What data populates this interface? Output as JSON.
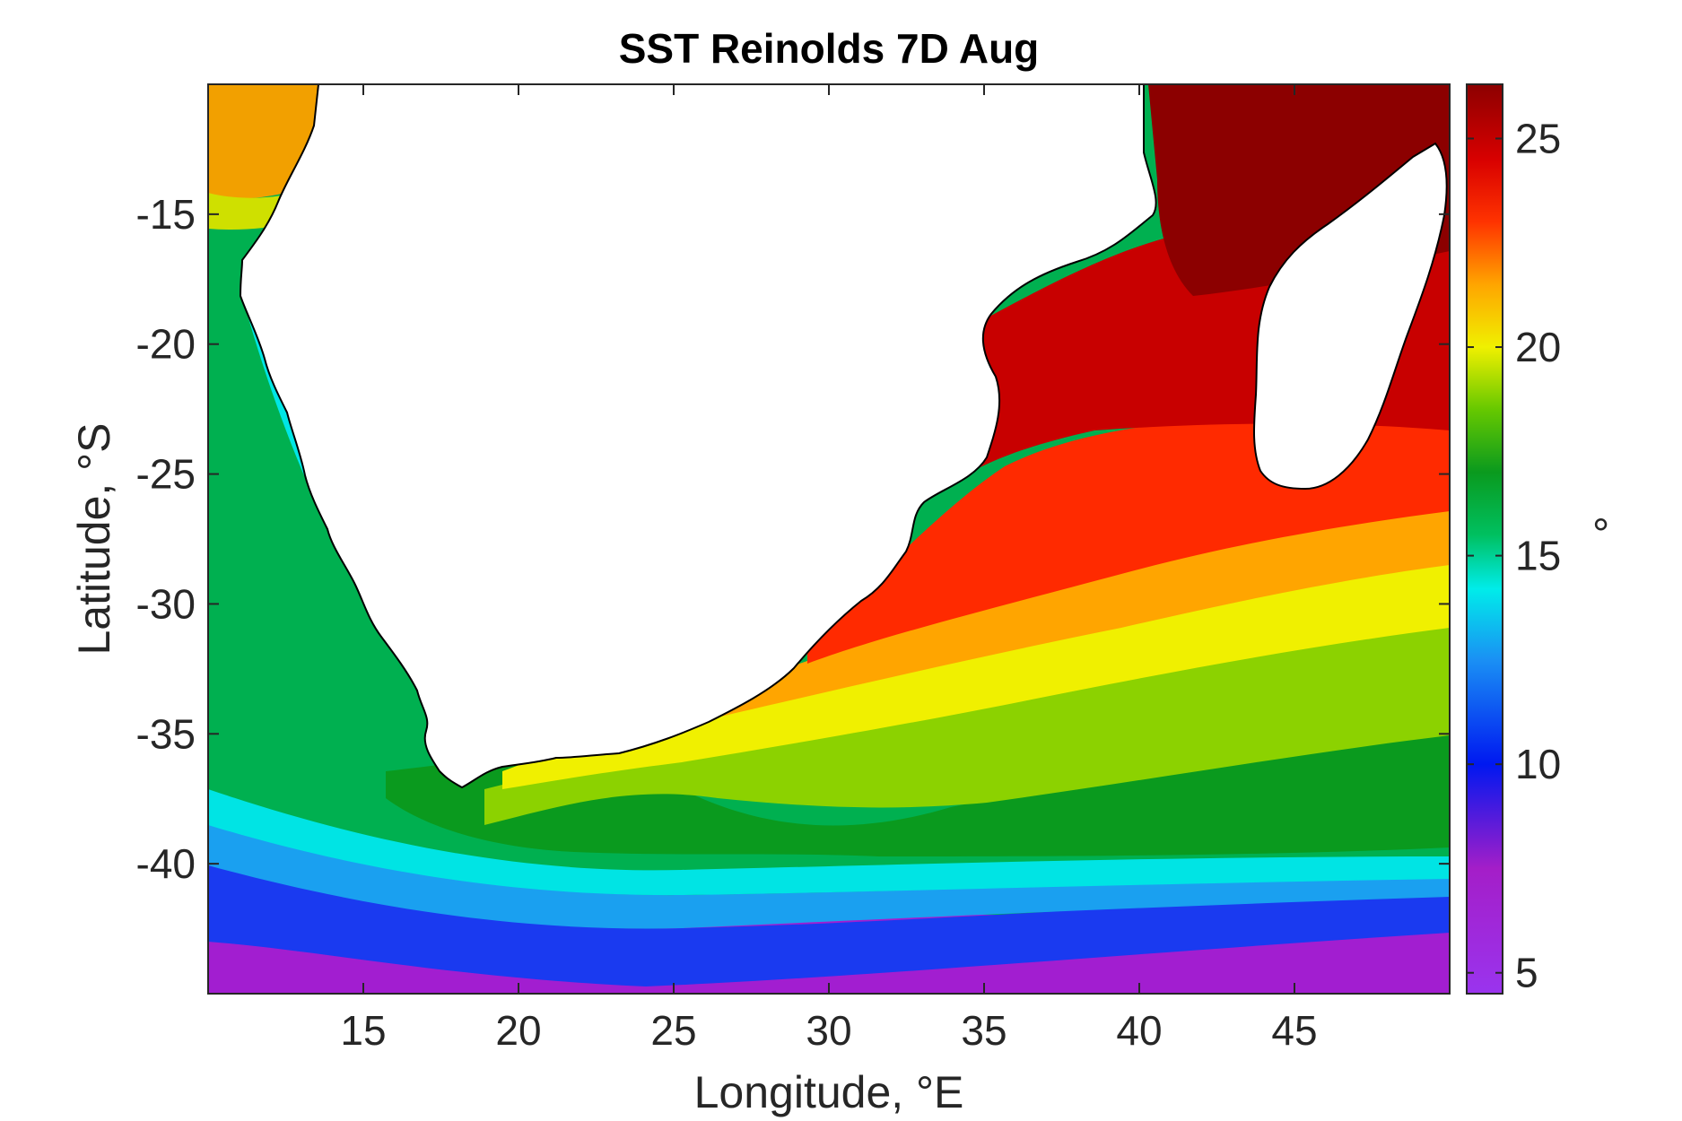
{
  "title": "SST Reinolds 7D Aug",
  "map": {
    "xlabel": "Longitude, °E",
    "ylabel": "Latitude, °S",
    "xlim": [
      10,
      50
    ],
    "ylim": [
      -45,
      -10
    ],
    "xticks": [
      {
        "value": 15,
        "label": "15"
      },
      {
        "value": 20,
        "label": "20"
      },
      {
        "value": 25,
        "label": "25"
      },
      {
        "value": 30,
        "label": "30"
      },
      {
        "value": 35,
        "label": "35"
      },
      {
        "value": 40,
        "label": "40"
      },
      {
        "value": 45,
        "label": "45"
      }
    ],
    "yticks": [
      {
        "value": -15,
        "label": "-15"
      },
      {
        "value": -20,
        "label": "-20"
      },
      {
        "value": -25,
        "label": "-25"
      },
      {
        "value": -30,
        "label": "-30"
      },
      {
        "value": -35,
        "label": "-35"
      },
      {
        "value": -40,
        "label": "-40"
      }
    ],
    "land_color": "#ffffff",
    "coastline_color": "#000000"
  },
  "colorbar": {
    "label": "°",
    "range": [
      4.5,
      26.3
    ],
    "ticks": [
      {
        "value": 5,
        "label": "5"
      },
      {
        "value": 10,
        "label": "10"
      },
      {
        "value": 15,
        "label": "15"
      },
      {
        "value": 20,
        "label": "20"
      },
      {
        "value": 25,
        "label": "25"
      }
    ],
    "stops": [
      {
        "value": 4.5,
        "color": "#9a34ee"
      },
      {
        "value": 7.5,
        "color": "#a41ec8"
      },
      {
        "value": 10,
        "color": "#0018f0"
      },
      {
        "value": 12.5,
        "color": "#1a90f4"
      },
      {
        "value": 14.2,
        "color": "#00ecea"
      },
      {
        "value": 15.5,
        "color": "#00c060"
      },
      {
        "value": 17,
        "color": "#0a9a1e"
      },
      {
        "value": 18.5,
        "color": "#66c800"
      },
      {
        "value": 20,
        "color": "#f0f000"
      },
      {
        "value": 21.5,
        "color": "#ffa500"
      },
      {
        "value": 23,
        "color": "#ff3300"
      },
      {
        "value": 24.5,
        "color": "#d80000"
      },
      {
        "value": 26.3,
        "color": "#8c0000"
      }
    ]
  }
}
